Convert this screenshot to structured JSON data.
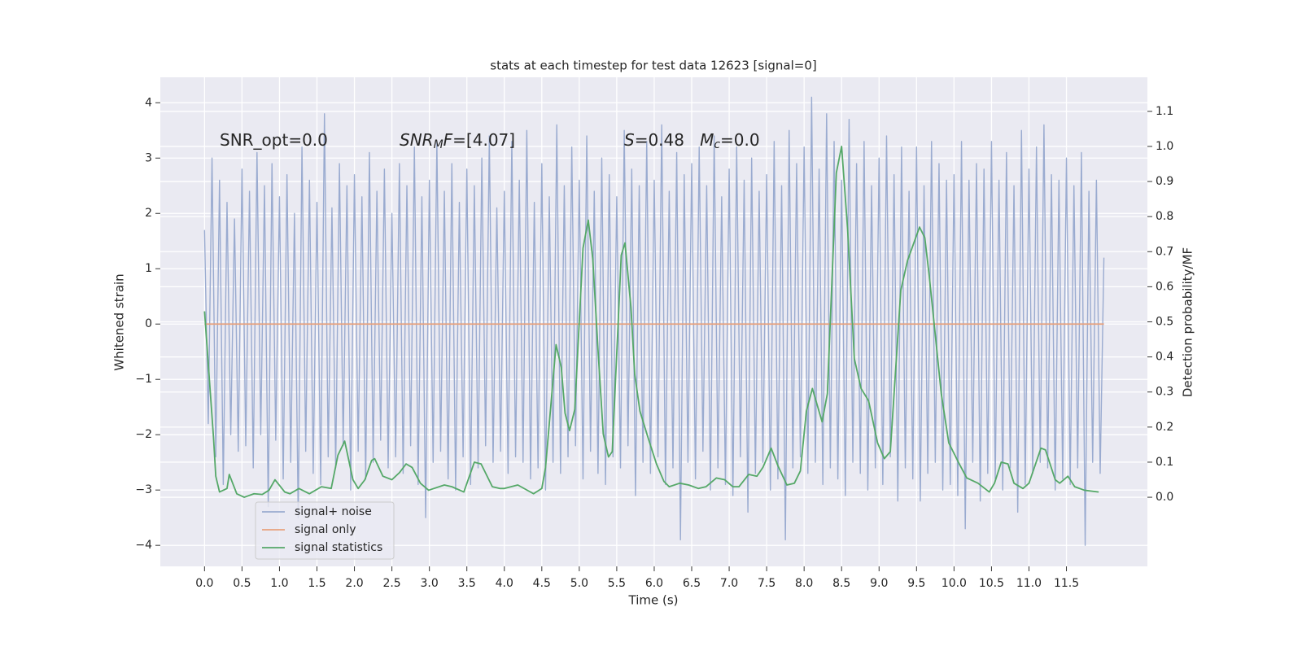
{
  "chart_data": {
    "type": "line",
    "title": "stats at each timestep for test data 12623 [signal=0]",
    "xlabel": "Time (s)",
    "ylabel": "Whitened strain",
    "y2label": "Detection probability/MF",
    "annotations": [
      [
        {
          "text": "SNR_opt=0.0"
        }
      ],
      [
        {
          "text": "SNR",
          "style": "italic"
        },
        {
          "text": "M",
          "style": "italic-sub"
        },
        {
          "text": "F",
          "style": "italic"
        },
        {
          "text": "=[4.07]"
        }
      ],
      [
        {
          "text": "S",
          "style": "italic"
        },
        {
          "text": "=0.48   "
        },
        {
          "text": "M",
          "style": "italic"
        },
        {
          "text": "c",
          "style": "italic-sub"
        },
        {
          "text": "=0.0"
        }
      ]
    ],
    "xlim": [
      -0.59,
      12.58
    ],
    "ylim": [
      -4.38,
      4.46
    ],
    "y2lim": [
      -0.197,
      1.197
    ],
    "xticks": [
      {
        "value": 0,
        "label": "0.0"
      },
      0.5,
      {
        "value": 1,
        "label": "1.0"
      },
      1.5,
      {
        "value": 2,
        "label": "2.0"
      },
      2.5,
      {
        "value": 3,
        "label": "3.0"
      },
      3.5,
      {
        "value": 4,
        "label": "4.0"
      },
      4.5,
      {
        "value": 5,
        "label": "5.0"
      },
      5.5,
      {
        "value": 6,
        "label": "6.0"
      },
      6.5,
      {
        "value": 7,
        "label": "7.0"
      },
      7.5,
      {
        "value": 8,
        "label": "8.0"
      },
      8.5,
      {
        "value": 9,
        "label": "9.0"
      },
      9.5,
      {
        "value": 10,
        "label": "10.0"
      },
      10.5,
      {
        "value": 11,
        "label": "11.0"
      },
      11.5
    ],
    "yticks": [
      {
        "value": -4,
        "label": "−4"
      },
      {
        "value": -3,
        "label": "−3"
      },
      {
        "value": -2,
        "label": "−2"
      },
      {
        "value": -1,
        "label": "−1"
      },
      0,
      1,
      2,
      3,
      4
    ],
    "y2ticks": [
      {
        "value": 0,
        "label": "0.0"
      },
      0.1,
      0.2,
      0.3,
      0.4,
      0.5,
      0.6,
      0.7,
      0.8,
      0.9,
      {
        "value": 1,
        "label": "1.0"
      },
      1.1
    ],
    "grid": true,
    "legend": "lower left",
    "series": [
      {
        "name": "signal+ noise",
        "color": "#9aabd0",
        "x": [
          0,
          0.05,
          0.1,
          0.15,
          0.2,
          0.25,
          0.3,
          0.35,
          0.4,
          0.45,
          0.5,
          0.55,
          0.6,
          0.65,
          0.7,
          0.75,
          0.8,
          0.85,
          0.9,
          0.95,
          1,
          1.05,
          1.1,
          1.15,
          1.2,
          1.25,
          1.3,
          1.35,
          1.4,
          1.45,
          1.5,
          1.55,
          1.6,
          1.65,
          1.7,
          1.75,
          1.8,
          1.85,
          1.9,
          1.95,
          2,
          2.05,
          2.1,
          2.15,
          2.2,
          2.25,
          2.3,
          2.35,
          2.4,
          2.45,
          2.5,
          2.55,
          2.6,
          2.65,
          2.7,
          2.75,
          2.8,
          2.85,
          2.9,
          2.95,
          3,
          3.05,
          3.1,
          3.15,
          3.2,
          3.25,
          3.3,
          3.35,
          3.4,
          3.45,
          3.5,
          3.55,
          3.6,
          3.65,
          3.7,
          3.75,
          3.8,
          3.85,
          3.9,
          3.95,
          4,
          4.05,
          4.1,
          4.15,
          4.2,
          4.25,
          4.3,
          4.35,
          4.4,
          4.45,
          4.5,
          4.55,
          4.6,
          4.65,
          4.7,
          4.75,
          4.8,
          4.85,
          4.9,
          4.95,
          5,
          5.05,
          5.1,
          5.15,
          5.2,
          5.25,
          5.3,
          5.35,
          5.4,
          5.45,
          5.5,
          5.55,
          5.6,
          5.65,
          5.7,
          5.75,
          5.8,
          5.85,
          5.9,
          5.95,
          6,
          6.05,
          6.1,
          6.15,
          6.2,
          6.25,
          6.3,
          6.35,
          6.4,
          6.45,
          6.5,
          6.55,
          6.6,
          6.65,
          6.7,
          6.75,
          6.8,
          6.85,
          6.9,
          6.95,
          7,
          7.05,
          7.1,
          7.15,
          7.2,
          7.25,
          7.3,
          7.35,
          7.4,
          7.45,
          7.5,
          7.55,
          7.6,
          7.65,
          7.7,
          7.75,
          7.8,
          7.85,
          7.9,
          7.95,
          8,
          8.05,
          8.1,
          8.15,
          8.2,
          8.25,
          8.3,
          8.35,
          8.4,
          8.45,
          8.5,
          8.55,
          8.6,
          8.65,
          8.7,
          8.75,
          8.8,
          8.85,
          8.9,
          8.95,
          9,
          9.05,
          9.1,
          9.15,
          9.2,
          9.25,
          9.3,
          9.35,
          9.4,
          9.45,
          9.5,
          9.55,
          9.6,
          9.65,
          9.7,
          9.75,
          9.8,
          9.85,
          9.9,
          9.95,
          10,
          10.05,
          10.1,
          10.15,
          10.2,
          10.25,
          10.3,
          10.35,
          10.4,
          10.45,
          10.5,
          10.55,
          10.6,
          10.65,
          10.7,
          10.75,
          10.8,
          10.85,
          10.9,
          10.95,
          11,
          11.05,
          11.1,
          11.15,
          11.2,
          11.25,
          11.3,
          11.35,
          11.4,
          11.45,
          11.5,
          11.55,
          11.6,
          11.65,
          11.7,
          11.75,
          11.8,
          11.85,
          11.9,
          11.95,
          12
        ],
        "values": [
          1.7,
          -1.8,
          3.0,
          -2.4,
          2.6,
          -2.9,
          2.2,
          -2.0,
          1.9,
          -2.3,
          2.8,
          -2.2,
          2.4,
          -2.6,
          3.1,
          -2.0,
          2.5,
          -3.3,
          2.9,
          -2.1,
          2.3,
          -2.8,
          2.7,
          -2.5,
          2.0,
          -3.5,
          3.2,
          -2.3,
          2.6,
          -2.7,
          2.2,
          -2.9,
          3.8,
          -2.4,
          2.1,
          -2.6,
          2.9,
          -2.2,
          2.5,
          -3.0,
          2.7,
          -2.3,
          2.3,
          -2.8,
          3.1,
          -2.5,
          2.4,
          -2.1,
          2.8,
          -2.6,
          2.0,
          -2.4,
          2.9,
          -2.7,
          2.5,
          -2.2,
          3.2,
          -2.9,
          2.3,
          -3.5,
          2.6,
          -2.5,
          3.3,
          -2.3,
          2.4,
          -2.8,
          2.9,
          -3.0,
          2.2,
          -2.4,
          2.8,
          -2.9,
          2.5,
          -2.6,
          3.0,
          -2.2,
          3.4,
          -2.5,
          2.1,
          -2.3,
          2.4,
          -2.7,
          3.3,
          -2.4,
          2.6,
          -2.5,
          3.5,
          -2.8,
          2.2,
          -2.6,
          2.9,
          -3.0,
          2.3,
          -2.5,
          3.6,
          -2.7,
          2.5,
          -2.4,
          3.2,
          -2.2,
          2.6,
          -2.8,
          3.4,
          -2.3,
          2.4,
          -2.7,
          3.0,
          -2.9,
          2.7,
          -2.4,
          2.3,
          -2.6,
          3.5,
          -2.2,
          2.8,
          -3.1,
          2.5,
          -2.5,
          3.3,
          -2.7,
          2.6,
          -2.4,
          3.6,
          -2.9,
          2.4,
          -2.6,
          3.1,
          -3.9,
          2.7,
          -2.5,
          2.9,
          -2.8,
          3.2,
          -2.3,
          2.5,
          -3.0,
          3.4,
          -2.6,
          2.3,
          -2.9,
          2.8,
          -3.1,
          3.2,
          -2.4,
          2.6,
          -3.4,
          3.0,
          -2.7,
          2.4,
          -2.5,
          2.7,
          -3.0,
          3.3,
          -2.8,
          2.5,
          -3.9,
          3.5,
          -2.6,
          2.9,
          -2.4,
          3.2,
          -2.7,
          4.1,
          -2.5,
          2.8,
          -2.9,
          3.8,
          -2.6,
          3.3,
          -2.8,
          2.6,
          -3.1,
          3.7,
          -2.5,
          2.9,
          -2.7,
          3.3,
          -3.0,
          2.5,
          -2.6,
          3.0,
          -2.9,
          3.4,
          -2.4,
          2.7,
          -3.2,
          3.2,
          -2.6,
          2.4,
          -2.8,
          3.2,
          -3.2,
          2.5,
          -2.7,
          3.3,
          -2.5,
          2.9,
          -3.0,
          2.6,
          -2.9,
          2.7,
          -3.1,
          3.3,
          -3.7,
          2.6,
          -2.5,
          2.9,
          -3.2,
          2.8,
          -2.7,
          3.3,
          -2.8,
          2.6,
          -3.0,
          3.1,
          -2.6,
          2.5,
          -3.4,
          3.5,
          -2.9,
          2.8,
          -2.7,
          3.2,
          -2.5,
          3.6,
          -2.6,
          2.7,
          -3.0,
          2.6,
          -2.8,
          3.0,
          -2.9,
          2.5,
          -2.6,
          3.1,
          -4.0,
          2.4,
          -2.5,
          2.6,
          -2.7,
          1.2
        ]
      },
      {
        "name": "signal only",
        "color": "#e8a27e",
        "x": [
          0,
          12
        ],
        "values": [
          0,
          0
        ]
      },
      {
        "name": "signal statistics",
        "color": "#55a868",
        "axis": "y2",
        "x": [
          0,
          0.12,
          0.15,
          0.2,
          0.3,
          0.33,
          0.43,
          0.53,
          0.66,
          0.77,
          0.86,
          0.94,
          1.07,
          1.14,
          1.26,
          1.4,
          1.56,
          1.69,
          1.78,
          1.87,
          1.98,
          2.05,
          2.14,
          2.23,
          2.27,
          2.38,
          2.5,
          2.6,
          2.69,
          2.77,
          2.88,
          2.99,
          3.2,
          3.3,
          3.46,
          3.6,
          3.69,
          3.84,
          3.94,
          4.0,
          4.18,
          4.39,
          4.5,
          4.55,
          4.69,
          4.76,
          4.81,
          4.87,
          4.94,
          5.05,
          5.12,
          5.18,
          5.25,
          5.32,
          5.39,
          5.44,
          5.56,
          5.61,
          5.69,
          5.74,
          5.81,
          5.91,
          6.03,
          6.13,
          6.2,
          6.34,
          6.46,
          6.59,
          6.69,
          6.83,
          6.94,
          7.05,
          7.13,
          7.26,
          7.37,
          7.45,
          7.56,
          7.65,
          7.77,
          7.87,
          7.95,
          8.03,
          8.11,
          8.24,
          8.31,
          8.43,
          8.5,
          8.58,
          8.67,
          8.76,
          8.86,
          8.98,
          9.07,
          9.15,
          9.29,
          9.38,
          9.54,
          9.61,
          9.67,
          9.83,
          9.93,
          10.07,
          10.17,
          10.32,
          10.47,
          10.54,
          10.63,
          10.72,
          10.8,
          10.92,
          11.0,
          11.16,
          11.22,
          11.35,
          11.41,
          11.52,
          11.61,
          11.74,
          11.93
        ],
        "values": [
          0.53,
          0.17,
          0.06,
          0.015,
          0.025,
          0.065,
          0.01,
          0.0,
          0.01,
          0.008,
          0.02,
          0.05,
          0.015,
          0.01,
          0.025,
          0.01,
          0.03,
          0.025,
          0.12,
          0.16,
          0.05,
          0.025,
          0.05,
          0.105,
          0.11,
          0.06,
          0.05,
          0.07,
          0.095,
          0.085,
          0.04,
          0.02,
          0.035,
          0.03,
          0.015,
          0.1,
          0.095,
          0.03,
          0.025,
          0.025,
          0.035,
          0.01,
          0.025,
          0.085,
          0.435,
          0.37,
          0.24,
          0.19,
          0.25,
          0.71,
          0.79,
          0.68,
          0.42,
          0.18,
          0.115,
          0.13,
          0.69,
          0.725,
          0.54,
          0.35,
          0.245,
          0.175,
          0.095,
          0.045,
          0.03,
          0.04,
          0.035,
          0.025,
          0.03,
          0.055,
          0.05,
          0.03,
          0.03,
          0.065,
          0.06,
          0.085,
          0.14,
          0.09,
          0.035,
          0.04,
          0.075,
          0.245,
          0.31,
          0.215,
          0.295,
          0.925,
          1.0,
          0.765,
          0.395,
          0.31,
          0.275,
          0.155,
          0.11,
          0.13,
          0.59,
          0.675,
          0.77,
          0.74,
          0.63,
          0.295,
          0.155,
          0.095,
          0.055,
          0.04,
          0.015,
          0.04,
          0.1,
          0.095,
          0.04,
          0.025,
          0.04,
          0.14,
          0.135,
          0.05,
          0.04,
          0.06,
          0.03,
          0.02,
          0.015
        ]
      }
    ]
  }
}
